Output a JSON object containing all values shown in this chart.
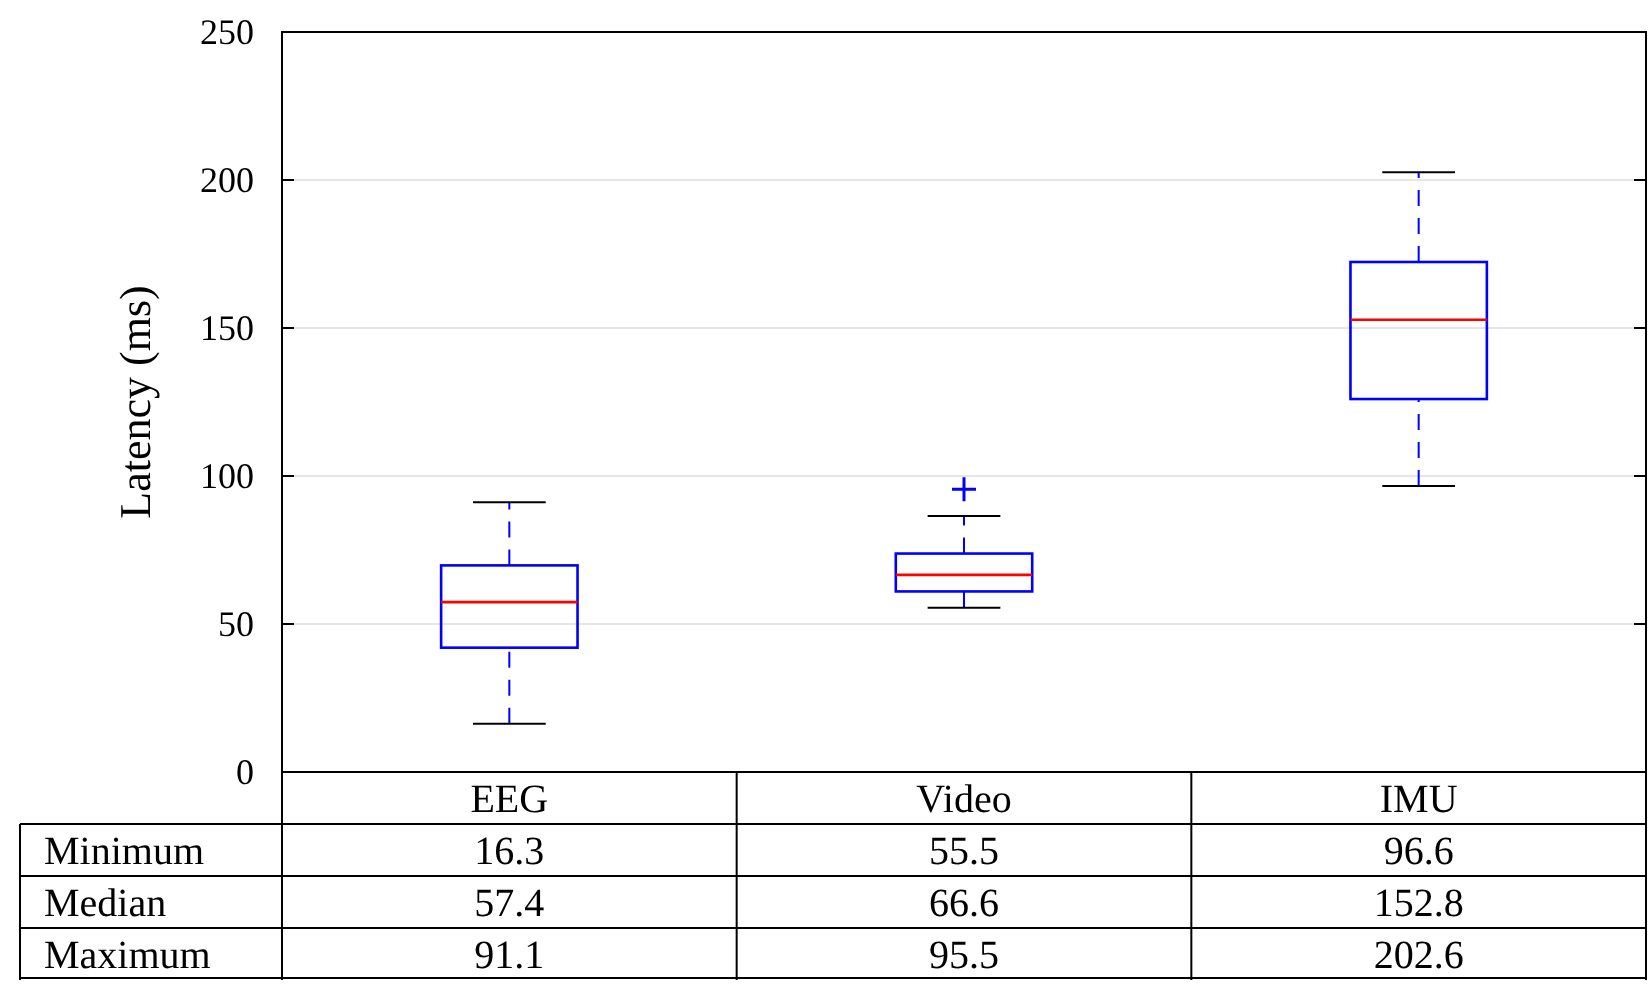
{
  "chart_data": {
    "type": "box",
    "ylabel": "Latency (ms)",
    "categories": [
      "EEG",
      "Video",
      "IMU"
    ],
    "boxes": [
      {
        "low": 16.3,
        "q1": 42,
        "median": 57.4,
        "q3": 69.8,
        "high": 91.1
      },
      {
        "low": 55.5,
        "q1": 61,
        "median": 66.6,
        "q3": 73.8,
        "high": 86.5,
        "outliers": [
          95.5
        ]
      },
      {
        "low": 96.6,
        "q1": 126,
        "median": 152.8,
        "q3": 172.3,
        "high": 202.6
      }
    ],
    "color": "#0000ff",
    "ylim": [
      0,
      250
    ],
    "yticks": [
      0,
      50,
      100,
      150,
      200,
      250
    ],
    "grid": "y",
    "value_labels": [
      [
        "16.3",
        "55.5",
        "96.6"
      ],
      [
        "57.4",
        "66.6",
        "152.8"
      ],
      [
        "91.1",
        "95.5",
        "202.6"
      ]
    ],
    "annotations": [
      "Minimum",
      "Median",
      "Maximum"
    ]
  }
}
